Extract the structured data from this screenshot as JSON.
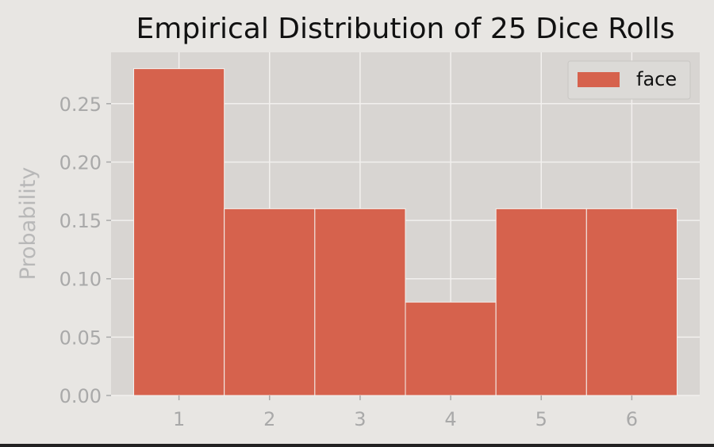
{
  "chart_data": {
    "type": "bar",
    "title": "Empirical Distribution of 25 Dice Rolls",
    "xlabel": "",
    "ylabel": "Probability",
    "categories": [
      "1",
      "2",
      "3",
      "4",
      "5",
      "6"
    ],
    "series": [
      {
        "name": "face",
        "values": [
          0.28,
          0.16,
          0.16,
          0.08,
          0.16,
          0.16
        ]
      }
    ],
    "yticks": [
      "0.00",
      "0.05",
      "0.10",
      "0.15",
      "0.20",
      "0.25"
    ],
    "ylim": [
      0,
      0.294
    ],
    "grid": true,
    "legend": "top-right",
    "colors": {
      "bar": "#d6624d",
      "plot_bg": "#d8d5d2",
      "page_bg": "#e8e6e3",
      "grid": "#f2f0ee"
    }
  }
}
